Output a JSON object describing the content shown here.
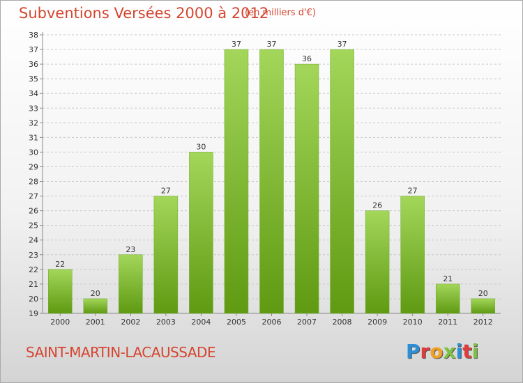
{
  "title": "Subventions Versées 2000 à 2012",
  "unit": "(en milliers d'€)",
  "commune": "SAINT-MARTIN-LACAUSSADE",
  "logo": {
    "letters": [
      {
        "ch": "P",
        "color": "#2a8fd6"
      },
      {
        "ch": "r",
        "color": "#e03c3c"
      },
      {
        "ch": "o",
        "color": "#f2a01f"
      },
      {
        "ch": "x",
        "color": "#7cc242"
      },
      {
        "ch": "i",
        "color": "#2a8fd6"
      },
      {
        "ch": "t",
        "color": "#e03c3c"
      },
      {
        "ch": "i",
        "color": "#7cc242"
      }
    ]
  },
  "colors": {
    "title": "#d4452f",
    "bar_light": "#a3d65a",
    "bar_dark": "#5f9a12",
    "grid": "#c8c8c8",
    "text": "#333333"
  },
  "chart_data": {
    "type": "bar",
    "categories": [
      "2000",
      "2001",
      "2002",
      "2003",
      "2004",
      "2005",
      "2006",
      "2007",
      "2008",
      "2009",
      "2010",
      "2011",
      "2012"
    ],
    "values": [
      22,
      20,
      23,
      27,
      30,
      37,
      37,
      36,
      37,
      26,
      27,
      21,
      20
    ],
    "ylim": [
      19,
      38
    ],
    "yticks": [
      19,
      20,
      21,
      22,
      23,
      24,
      25,
      26,
      27,
      28,
      29,
      30,
      31,
      32,
      33,
      34,
      35,
      36,
      37,
      38
    ],
    "grid": true,
    "data_labels": true
  }
}
